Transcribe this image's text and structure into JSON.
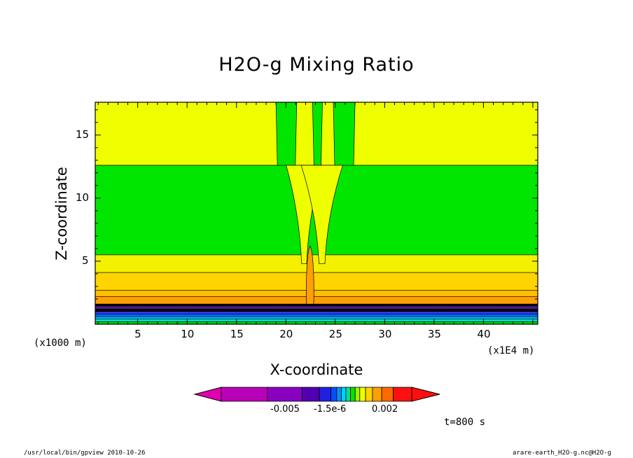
{
  "chart_data": {
    "type": "contour",
    "title": "H2O-g Mixing Ratio",
    "xlabel": "X-coordinate",
    "ylabel": "Z-coordinate",
    "x_unit_label": "(x1000 m)",
    "x_scale_label": "(x1E4 m)",
    "time_label": "t=800 s",
    "xlim": [
      0.7,
      45.5
    ],
    "ylim": [
      0,
      17.6
    ],
    "xticks": [
      5,
      10,
      15,
      20,
      25,
      30,
      35,
      40
    ],
    "xtick_labels": [
      "5",
      "10",
      "15",
      "20",
      "25",
      "30",
      "35",
      "40"
    ],
    "yticks": [
      5,
      10,
      15
    ],
    "ytick_labels": [
      "5",
      "10",
      "15"
    ],
    "horizontal_layers": [
      {
        "z_bottom": 12.6,
        "z_top": 17.6,
        "color": "#f0ff00"
      },
      {
        "z_bottom": 5.5,
        "z_top": 12.6,
        "color": "#00e600"
      },
      {
        "z_bottom": 4.1,
        "z_top": 5.5,
        "color": "#f5f000"
      },
      {
        "z_bottom": 2.7,
        "z_top": 4.1,
        "color": "#ffd400"
      },
      {
        "z_bottom": 2.2,
        "z_top": 2.7,
        "color": "#ffbe00"
      },
      {
        "z_bottom": 1.6,
        "z_top": 2.2,
        "color": "#ff9f00"
      },
      {
        "z_bottom": 1.45,
        "z_top": 1.6,
        "color": "#000000"
      },
      {
        "z_bottom": 1.2,
        "z_top": 1.45,
        "color": "#4a1a8a"
      },
      {
        "z_bottom": 1.0,
        "z_top": 1.2,
        "color": "#000000"
      },
      {
        "z_bottom": 0.8,
        "z_top": 1.0,
        "color": "#3a3aff"
      },
      {
        "z_bottom": 0.6,
        "z_top": 0.8,
        "color": "#0070ff"
      },
      {
        "z_bottom": 0.4,
        "z_top": 0.6,
        "color": "#00b8ff"
      },
      {
        "z_bottom": 0.2,
        "z_top": 0.4,
        "color": "#00e0c0"
      },
      {
        "z_bottom": 0.0,
        "z_top": 0.2,
        "color": "#00d800"
      }
    ],
    "plume_features": [
      {
        "name": "green-column-left",
        "z_bottom": 12.6,
        "z_top": 17.6,
        "x_left": 19.0,
        "x_right": 21.1,
        "color": "#00e600"
      },
      {
        "name": "green-column-right",
        "z_bottom": 12.6,
        "z_top": 17.6,
        "x_left": 24.8,
        "x_right": 27.0,
        "color": "#00e600"
      },
      {
        "name": "green-column-core",
        "z_bottom": 12.6,
        "z_top": 17.6,
        "x_left": 22.7,
        "x_right": 23.7,
        "color": "#00e600"
      },
      {
        "name": "yellow-plume-left-arm",
        "z_bottom": 4.8,
        "z_top": 12.6,
        "x_left": 21.2,
        "x_right": 22.5,
        "color": "#f0ff00"
      },
      {
        "name": "yellow-plume-right-arm",
        "z_bottom": 4.8,
        "z_top": 12.6,
        "x_left": 22.9,
        "x_right": 24.4,
        "color": "#f0ff00"
      },
      {
        "name": "orange-updraft-core",
        "z_bottom": 1.6,
        "z_top": 6.2,
        "x_left": 22.1,
        "x_right": 22.8,
        "color": "#ff9f00"
      }
    ],
    "colorbar": {
      "colors": [
        "#e000b0",
        "#b800b8",
        "#8a00c0",
        "#5000b0",
        "#2020e0",
        "#0050ff",
        "#0090ff",
        "#00d0ff",
        "#00e0a0",
        "#00e600",
        "#a0f000",
        "#f0ff00",
        "#ffd400",
        "#ffa000",
        "#ff6a00",
        "#ff1010"
      ],
      "tick_labels": [
        "-0.005",
        "-1.5e-6",
        "0.002"
      ]
    }
  },
  "footer": {
    "left": "/usr/local/bin/gpview  2010-10-26",
    "right": "arare-earth_H2O-g.nc@H2O-g"
  }
}
